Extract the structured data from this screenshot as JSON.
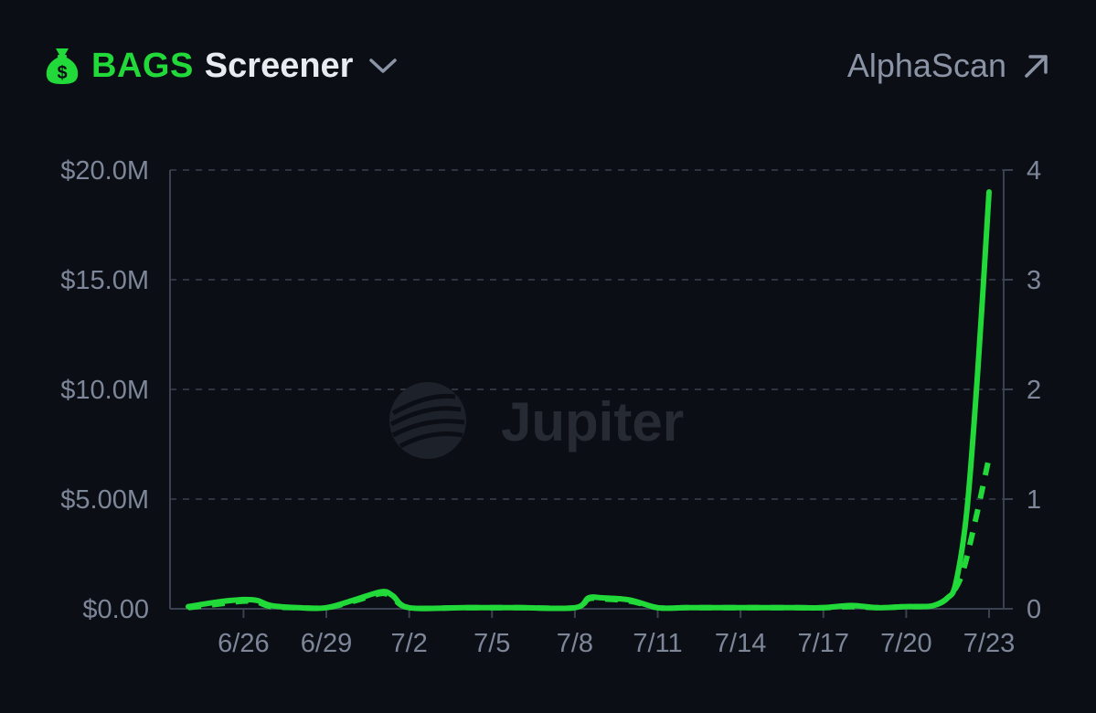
{
  "header": {
    "brand": "BAGS",
    "title": "Screener",
    "link_label": "AlphaScan"
  },
  "watermark": "Jupiter",
  "colors": {
    "background": "#0b0e14",
    "accent": "#22d93a",
    "grid": "#3a4150",
    "axis_text": "#7e8799"
  },
  "icons": [
    "money-bag-icon",
    "chevron-down-icon",
    "external-link-icon",
    "jupiter-logo-icon"
  ],
  "chart_data": {
    "type": "line",
    "title": "",
    "xlabel": "",
    "ylabel": "",
    "grid": true,
    "y_left": {
      "ticks": [
        "$0.00",
        "$5.00M",
        "$10.0M",
        "$15.0M",
        "$20.0M"
      ],
      "tick_values": [
        0,
        5000000,
        10000000,
        15000000,
        20000000
      ],
      "range": [
        0,
        20000000
      ]
    },
    "y_right": {
      "ticks": [
        "0",
        "1",
        "2",
        "3",
        "4"
      ],
      "tick_values": [
        0,
        1,
        2,
        3,
        4
      ],
      "range": [
        0,
        4
      ]
    },
    "x_axis": {
      "ticks": [
        "6/26",
        "6/29",
        "7/2",
        "7/5",
        "7/8",
        "7/11",
        "7/14",
        "7/17",
        "7/20",
        "7/23"
      ],
      "tick_days": [
        2,
        5,
        8,
        11,
        14,
        17,
        20,
        23,
        26,
        29
      ],
      "range": [
        0,
        29
      ]
    },
    "series": [
      {
        "axis": "left",
        "style": "solid",
        "x": [
          0,
          1,
          2,
          2.5,
          3,
          4,
          5,
          6,
          7,
          7.4,
          8,
          10,
          12,
          14,
          14.5,
          15,
          16,
          17,
          18,
          19,
          20,
          21,
          22,
          23,
          24,
          25,
          26,
          26.5,
          27,
          27.5,
          27.8,
          28.2,
          28.6,
          29
        ],
        "y": [
          100000,
          300000,
          420000,
          380000,
          150000,
          50000,
          50000,
          400000,
          780000,
          600000,
          50000,
          50000,
          50000,
          50000,
          500000,
          500000,
          400000,
          50000,
          50000,
          50000,
          50000,
          50000,
          50000,
          50000,
          150000,
          50000,
          100000,
          100000,
          150000,
          500000,
          1200000,
          4500000,
          11000000,
          19000000
        ]
      },
      {
        "axis": "right",
        "style": "dashed",
        "x": [
          0,
          1,
          2,
          2.5,
          3,
          4,
          5,
          6,
          7,
          7.4,
          8,
          10,
          12,
          14,
          14.5,
          15,
          16,
          17,
          18,
          19,
          20,
          21,
          22,
          23,
          24,
          25,
          26,
          26.5,
          27,
          27.5,
          28,
          28.5,
          29
        ],
        "y": [
          0.01,
          0.04,
          0.07,
          0.06,
          0.02,
          0.01,
          0.01,
          0.07,
          0.14,
          0.1,
          0.01,
          0.01,
          0.01,
          0.01,
          0.09,
          0.09,
          0.07,
          0.01,
          0.01,
          0.01,
          0.01,
          0.01,
          0.01,
          0.01,
          0.02,
          0.01,
          0.02,
          0.02,
          0.03,
          0.1,
          0.3,
          0.8,
          1.38
        ]
      }
    ]
  }
}
